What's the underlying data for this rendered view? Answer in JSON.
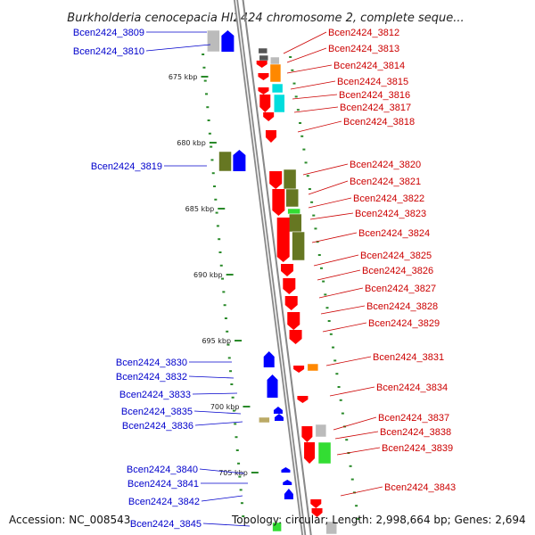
{
  "title": "Burkholderia cenocepacia HI2424 chromosome 2, complete seque...",
  "footer": {
    "accession": "Accession: NC_008543",
    "topology": "Topology: circular; Length: 2,998,664 bp; Genes: 2,694"
  },
  "colors": {
    "label_left": "#0000cc",
    "label_right": "#cc0000",
    "backbone": "#888888",
    "tick": "#2a8a2a",
    "red": "#ff0000",
    "blue": "#0000ff",
    "olive": "#667722",
    "orange": "#ff8800",
    "cyan": "#00dddd",
    "gray": "#bbbbbb",
    "dark": "#555555",
    "green": "#33dd33",
    "tan": "#bbaa66"
  },
  "kbp_marks": [
    {
      "label": "675 kbp",
      "kb": 675
    },
    {
      "label": "680 kbp",
      "kb": 680
    },
    {
      "label": "685 kbp",
      "kb": 685
    },
    {
      "label": "690 kbp",
      "kb": 690
    },
    {
      "label": "695 kbp",
      "kb": 695
    },
    {
      "label": "700 kbp",
      "kb": 700
    },
    {
      "label": "705 kbp",
      "kb": 705
    }
  ],
  "left_genes": [
    {
      "label": "Bcen2424_3809"
    },
    {
      "label": "Bcen2424_3810"
    },
    {
      "label": "Bcen2424_3819"
    },
    {
      "label": "Bcen2424_3830"
    },
    {
      "label": "Bcen2424_3832"
    },
    {
      "label": "Bcen2424_3833"
    },
    {
      "label": "Bcen2424_3835"
    },
    {
      "label": "Bcen2424_3836"
    },
    {
      "label": "Bcen2424_3840"
    },
    {
      "label": "Bcen2424_3841"
    },
    {
      "label": "Bcen2424_3842"
    },
    {
      "label": "Bcen2424_3845"
    }
  ],
  "right_genes": [
    {
      "label": "Bcen2424_3812"
    },
    {
      "label": "Bcen2424_3813"
    },
    {
      "label": "Bcen2424_3814"
    },
    {
      "label": "Bcen2424_3815"
    },
    {
      "label": "Bcen2424_3816"
    },
    {
      "label": "Bcen2424_3817"
    },
    {
      "label": "Bcen2424_3818"
    },
    {
      "label": "Bcen2424_3820"
    },
    {
      "label": "Bcen2424_3821"
    },
    {
      "label": "Bcen2424_3822"
    },
    {
      "label": "Bcen2424_3823"
    },
    {
      "label": "Bcen2424_3824"
    },
    {
      "label": "Bcen2424_3825"
    },
    {
      "label": "Bcen2424_3826"
    },
    {
      "label": "Bcen2424_3827"
    },
    {
      "label": "Bcen2424_3828"
    },
    {
      "label": "Bcen2424_3829"
    },
    {
      "label": "Bcen2424_3831"
    },
    {
      "label": "Bcen2424_3834"
    },
    {
      "label": "Bcen2424_3837"
    },
    {
      "label": "Bcen2424_3838"
    },
    {
      "label": "Bcen2424_3839"
    },
    {
      "label": "Bcen2424_3843"
    }
  ]
}
